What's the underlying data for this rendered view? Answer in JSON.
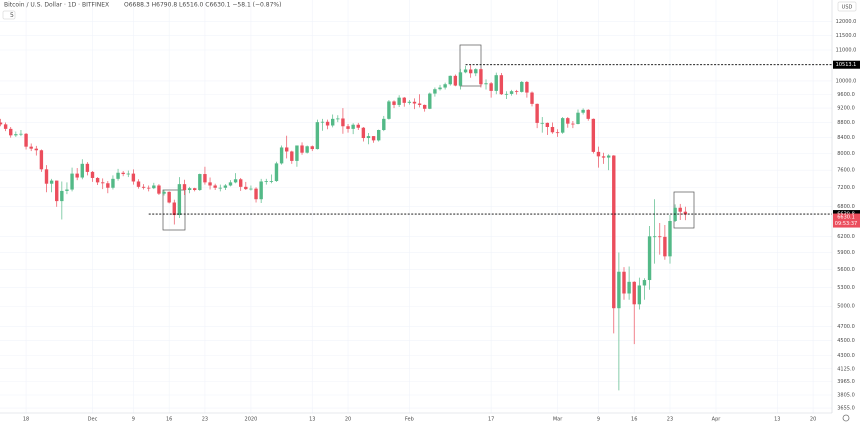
{
  "chart_data": {
    "type": "candlestick",
    "title": "Bitcoin / U.S. Dollar · 1D · BITFINEX",
    "ohlc_header": "O6688.3 H6790.8 L6516.0 C6630.1 −58.1 (−0.87%)",
    "indicator": "5",
    "currency": "USD",
    "countdown": "09:53:37",
    "up_color": "#53b987",
    "down_color": "#eb4d5c",
    "log_scale": true,
    "grid": true,
    "x": [
      0,
      1,
      2,
      3,
      4,
      5,
      6,
      7,
      8,
      9,
      10,
      11,
      12,
      13,
      14,
      15,
      16,
      17,
      18,
      19,
      20,
      21,
      22,
      23,
      24,
      25,
      26,
      27,
      28,
      29,
      30,
      31,
      32,
      33,
      34,
      35,
      36,
      37,
      38,
      39,
      40,
      41,
      42,
      43,
      44,
      45,
      46,
      47,
      48,
      49,
      50,
      51,
      52,
      53,
      54,
      55,
      56,
      57,
      58,
      59,
      60,
      61,
      62,
      63,
      64,
      65,
      66,
      67,
      68,
      69,
      70,
      71,
      72,
      73,
      74,
      75,
      76,
      77,
      78,
      79,
      80,
      81,
      82,
      83,
      84,
      85,
      86,
      87,
      88,
      89,
      90,
      91,
      92,
      93,
      94,
      95,
      96,
      97,
      98,
      99,
      100,
      101,
      102,
      103,
      104,
      105,
      106,
      107,
      108,
      109,
      110,
      111,
      112,
      113,
      114,
      115,
      116,
      117,
      118,
      119,
      120,
      121,
      122,
      123,
      124,
      125,
      126,
      127,
      128,
      129,
      130,
      131,
      132,
      133,
      134
    ],
    "open": [
      8800,
      8750,
      8630,
      8460,
      8490,
      8500,
      8170,
      8120,
      8080,
      7620,
      7290,
      7360,
      6910,
      7130,
      7160,
      7520,
      7430,
      7750,
      7560,
      7420,
      7320,
      7300,
      7200,
      7400,
      7540,
      7510,
      7520,
      7340,
      7220,
      7200,
      7190,
      7250,
      7070,
      7110,
      6880,
      6620,
      7280,
      7150,
      7190,
      7150,
      7510,
      7320,
      7250,
      7200,
      7200,
      7250,
      7320,
      7390,
      7220,
      7170,
      7180,
      6950,
      7340,
      7350,
      7350,
      7760,
      8150,
      8050,
      7820,
      8200,
      8020,
      8180,
      8110,
      8810,
      8820,
      8720,
      8900,
      8910,
      8700,
      8630,
      8740,
      8660,
      8390,
      8440,
      8330,
      8600,
      8900,
      9390,
      9290,
      9500,
      9350,
      9380,
      9330,
      9290,
      9180,
      9620,
      9750,
      9800,
      9900,
      10160,
      9860,
      10270,
      10360,
      10240,
      10370,
      9900,
      9930,
      9700,
      10180,
      9600,
      9610,
      9690,
      9670,
      9970,
      9650,
      9320,
      8790,
      8790,
      8680,
      8540,
      8530,
      8920,
      8770,
      8760,
      9070,
      9150,
      8900,
      8040,
      7930,
      7900,
      7950,
      4970,
      5560,
      5200,
      5390,
      5030,
      5330,
      5420,
      6200,
      6200,
      6190,
      5830,
      6500,
      6770,
      6688.3
    ],
    "high": [
      8900,
      8800,
      8680,
      8560,
      8600,
      8520,
      8250,
      8190,
      8100,
      7720,
      7400,
      7360,
      7340,
      7320,
      7660,
      7650,
      7860,
      7790,
      7580,
      7440,
      7410,
      7350,
      7480,
      7630,
      7580,
      7590,
      7620,
      7390,
      7280,
      7250,
      7310,
      7280,
      7160,
      7120,
      6940,
      7440,
      7380,
      7220,
      7200,
      7520,
      7680,
      7430,
      7290,
      7270,
      7280,
      7370,
      7530,
      7420,
      7330,
      7250,
      7210,
      7400,
      7400,
      7500,
      7800,
      8200,
      8450,
      8070,
      8200,
      8280,
      8200,
      8200,
      8880,
      8900,
      8880,
      9020,
      9000,
      9200,
      8760,
      8780,
      8790,
      8680,
      8520,
      8440,
      8610,
      8980,
      9430,
      9420,
      9570,
      9520,
      9430,
      9480,
      9600,
      9300,
      9650,
      9800,
      9880,
      9950,
      10170,
      10200,
      10380,
      10480,
      10500,
      10400,
      10400,
      10050,
      9970,
      10260,
      10250,
      9690,
      9730,
      9730,
      10000,
      10000,
      9680,
      9330,
      8950,
      8800,
      8800,
      8620,
      8950,
      8950,
      8840,
      9160,
      9190,
      9170,
      8910,
      8170,
      8020,
      7980,
      7960,
      5900,
      5640,
      5650,
      5400,
      5460,
      5450,
      6400,
      6950,
      6460,
      6420,
      6620,
      6840,
      6850,
      6790.8
    ],
    "low": [
      8700,
      8570,
      8400,
      8420,
      8440,
      8100,
      8060,
      7950,
      7560,
      7100,
      7100,
      6790,
      6530,
      7060,
      7120,
      7370,
      7390,
      7480,
      7330,
      7260,
      7170,
      7080,
      7160,
      7360,
      7460,
      7440,
      7270,
      7180,
      7160,
      7120,
      7170,
      7040,
      7030,
      6860,
      6430,
      6560,
      7040,
      7080,
      7120,
      7130,
      7270,
      7160,
      7150,
      7120,
      7150,
      7230,
      7300,
      7130,
      7150,
      7140,
      6880,
      6870,
      7270,
      7300,
      7330,
      7730,
      7880,
      7750,
      7680,
      7970,
      8000,
      8060,
      8100,
      8580,
      8620,
      8670,
      8810,
      8500,
      8530,
      8490,
      8600,
      8300,
      8230,
      8270,
      8300,
      8570,
      8880,
      9200,
      9230,
      9240,
      9300,
      9170,
      9220,
      9100,
      9170,
      9530,
      9710,
      9740,
      9860,
      9840,
      9740,
      10240,
      10100,
      10150,
      9800,
      9740,
      9500,
      9600,
      9580,
      9460,
      9560,
      9590,
      9650,
      9500,
      9250,
      8650,
      8530,
      8470,
      8500,
      8420,
      8500,
      8660,
      8650,
      8750,
      9020,
      8850,
      8000,
      7660,
      7750,
      7600,
      4600,
      3860,
      5100,
      5100,
      4450,
      4950,
      5100,
      5260,
      5700,
      5860,
      5770,
      5700,
      6480,
      6520,
      6516.0
    ],
    "close": [
      8750,
      8630,
      8460,
      8490,
      8500,
      8170,
      8120,
      8080,
      7620,
      7290,
      7360,
      6910,
      7130,
      7160,
      7520,
      7430,
      7750,
      7560,
      7420,
      7320,
      7300,
      7200,
      7400,
      7540,
      7510,
      7520,
      7340,
      7220,
      7200,
      7190,
      7250,
      7070,
      7110,
      6880,
      6620,
      7280,
      7150,
      7190,
      7150,
      7510,
      7320,
      7250,
      7200,
      7200,
      7250,
      7320,
      7390,
      7220,
      7170,
      7180,
      6950,
      7340,
      7350,
      7350,
      7760,
      8150,
      8050,
      7820,
      8200,
      8020,
      8180,
      8110,
      8810,
      8820,
      8720,
      8900,
      8910,
      8700,
      8630,
      8740,
      8660,
      8390,
      8440,
      8330,
      8600,
      8900,
      9390,
      9290,
      9500,
      9350,
      9380,
      9330,
      9290,
      9180,
      9620,
      9750,
      9800,
      9900,
      10160,
      9860,
      10270,
      10360,
      10240,
      10370,
      9900,
      9930,
      9700,
      10180,
      9600,
      9610,
      9690,
      9670,
      9970,
      9650,
      9320,
      8790,
      8790,
      8680,
      8540,
      8530,
      8920,
      8770,
      8760,
      9070,
      9150,
      8900,
      8040,
      7930,
      7900,
      7950,
      4970,
      5560,
      5200,
      5390,
      5030,
      5330,
      5420,
      6200,
      6200,
      6190,
      5830,
      6500,
      6770,
      6688.3,
      6630.1
    ],
    "xlim": [
      -0.1,
      162.7
    ],
    "xticks": [
      {
        "value": 5,
        "label": "18"
      },
      {
        "value": 18,
        "label": "Dec"
      },
      {
        "value": 26,
        "label": "9"
      },
      {
        "value": 33,
        "label": "16"
      },
      {
        "value": 40,
        "label": "23"
      },
      {
        "value": 49,
        "label": "2020"
      },
      {
        "value": 61,
        "label": "13"
      },
      {
        "value": 68,
        "label": "20"
      },
      {
        "value": 80,
        "label": "Feb"
      },
      {
        "value": 96,
        "label": "17"
      },
      {
        "value": 109,
        "label": "Mar"
      },
      {
        "value": 117,
        "label": "9"
      },
      {
        "value": 124,
        "label": "16"
      },
      {
        "value": 131,
        "label": "23"
      },
      {
        "value": 140,
        "label": "Apr"
      },
      {
        "value": 152,
        "label": "13"
      },
      {
        "value": 159,
        "label": "20"
      }
    ],
    "ylim": [
      3600,
      12830
    ],
    "yticks": [
      {
        "value": 12000,
        "label": "12000.0"
      },
      {
        "value": 11500,
        "label": "11500.0"
      },
      {
        "value": 11000,
        "label": "11000.0"
      },
      {
        "value": 10000,
        "label": "10000.0"
      },
      {
        "value": 9600,
        "label": "9600.0"
      },
      {
        "value": 9200,
        "label": "9200.0"
      },
      {
        "value": 8800,
        "label": "8800.0"
      },
      {
        "value": 8400,
        "label": "8400.0"
      },
      {
        "value": 8000,
        "label": "8000.0"
      },
      {
        "value": 7600,
        "label": "7600.0"
      },
      {
        "value": 7200,
        "label": "7200.0"
      },
      {
        "value": 6800,
        "label": "6800.0"
      },
      {
        "value": 6200,
        "label": "6200.0"
      },
      {
        "value": 5900,
        "label": "5900.0"
      },
      {
        "value": 5600,
        "label": "5600.0"
      },
      {
        "value": 5300,
        "label": "5300.0"
      },
      {
        "value": 5000,
        "label": "5000.0"
      },
      {
        "value": 4700,
        "label": "4700.0"
      },
      {
        "value": 4500,
        "label": "4500.0"
      },
      {
        "value": 4300,
        "label": "4300.0"
      },
      {
        "value": 4125,
        "label": "4125.0"
      },
      {
        "value": 3965,
        "label": "3965.0"
      },
      {
        "value": 3805,
        "label": "3805.0"
      },
      {
        "value": 3655,
        "label": "3655.0"
      }
    ],
    "hlines": [
      {
        "value": 10513.1,
        "from": 91,
        "color": "#000000"
      },
      {
        "value": 6639.8,
        "from": 29,
        "color": "#000000"
      }
    ]
  }
}
